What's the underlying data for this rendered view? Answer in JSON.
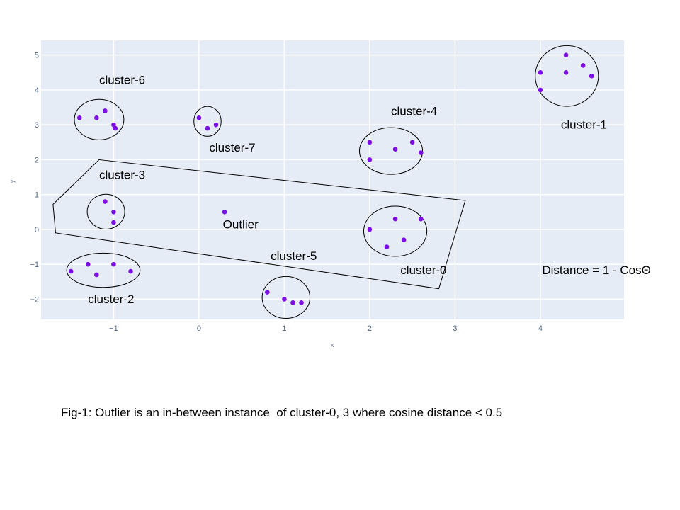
{
  "chart_data": {
    "type": "scatter",
    "title": "",
    "xlabel": "x",
    "ylabel": "y",
    "xlim": [
      -1.85,
      4.98
    ],
    "ylim": [
      -2.58,
      5.42
    ],
    "xticks": [
      -1,
      0,
      1,
      2,
      3,
      4
    ],
    "yticks": [
      -2,
      -1,
      0,
      1,
      2,
      3,
      4,
      5
    ],
    "xtick_labels": [
      "−1",
      "0",
      "1",
      "2",
      "3",
      "4"
    ],
    "ytick_labels": [
      "−2",
      "−1",
      "0",
      "1",
      "2",
      "3",
      "4",
      "5"
    ],
    "grid": true,
    "colors": {
      "plot_bg": "#E5ECF6",
      "grid": "#FFFFFF",
      "marker": "#7B0EE6",
      "outline": "#000000"
    },
    "points": [
      {
        "x": -1.4,
        "y": 3.2
      },
      {
        "x": -1.2,
        "y": 3.2
      },
      {
        "x": -1.1,
        "y": 3.4
      },
      {
        "x": -1.0,
        "y": 3.0
      },
      {
        "x": -0.98,
        "y": 2.9
      },
      {
        "x": 0.0,
        "y": 3.2
      },
      {
        "x": 0.1,
        "y": 2.9
      },
      {
        "x": 0.2,
        "y": 3.0
      },
      {
        "x": 2.0,
        "y": 2.5
      },
      {
        "x": 2.3,
        "y": 2.3
      },
      {
        "x": 2.5,
        "y": 2.5
      },
      {
        "x": 2.6,
        "y": 2.2
      },
      {
        "x": 2.0,
        "y": 2.0
      },
      {
        "x": 4.0,
        "y": 4.5
      },
      {
        "x": 4.0,
        "y": 4.0
      },
      {
        "x": 4.3,
        "y": 5.0
      },
      {
        "x": 4.3,
        "y": 4.5
      },
      {
        "x": 4.5,
        "y": 4.7
      },
      {
        "x": 4.6,
        "y": 4.4
      },
      {
        "x": -1.1,
        "y": 0.8
      },
      {
        "x": -1.0,
        "y": 0.5
      },
      {
        "x": -1.0,
        "y": 0.2
      },
      {
        "x": 0.3,
        "y": 0.5
      },
      {
        "x": 2.0,
        "y": 0.0
      },
      {
        "x": 2.3,
        "y": 0.3
      },
      {
        "x": 2.6,
        "y": 0.3
      },
      {
        "x": 2.2,
        "y": -0.5
      },
      {
        "x": 2.4,
        "y": -0.3
      },
      {
        "x": -1.5,
        "y": -1.2
      },
      {
        "x": -1.3,
        "y": -1.0
      },
      {
        "x": -1.2,
        "y": -1.3
      },
      {
        "x": -1.0,
        "y": -1.0
      },
      {
        "x": -0.8,
        "y": -1.2
      },
      {
        "x": 0.8,
        "y": -1.8
      },
      {
        "x": 1.0,
        "y": -2.0
      },
      {
        "x": 1.1,
        "y": -2.1
      },
      {
        "x": 1.2,
        "y": -2.1
      }
    ],
    "cluster_outlines": [
      {
        "name": "cluster-6",
        "cx": -1.17,
        "cy": 3.15,
        "rx": 0.29,
        "ry": 0.58
      },
      {
        "name": "cluster-7",
        "cx": 0.1,
        "cy": 3.1,
        "rx": 0.16,
        "ry": 0.43
      },
      {
        "name": "cluster-4",
        "cx": 2.25,
        "cy": 2.25,
        "rx": 0.37,
        "ry": 0.67
      },
      {
        "name": "cluster-1",
        "cx": 4.31,
        "cy": 4.4,
        "rx": 0.37,
        "ry": 0.87
      },
      {
        "name": "cluster-3",
        "cx": -1.09,
        "cy": 0.51,
        "rx": 0.22,
        "ry": 0.5
      },
      {
        "name": "cluster-0",
        "cx": 2.3,
        "cy": -0.05,
        "rx": 0.37,
        "ry": 0.72
      },
      {
        "name": "cluster-2",
        "cx": -1.12,
        "cy": -1.17,
        "rx": 0.43,
        "ry": 0.49
      },
      {
        "name": "cluster-5",
        "cx": 1.02,
        "cy": -1.95,
        "rx": 0.28,
        "ry": 0.6
      }
    ],
    "polygon": [
      [
        -1.17,
        2.0
      ],
      [
        3.12,
        0.83
      ],
      [
        2.81,
        -1.7
      ],
      [
        -1.68,
        -0.1
      ],
      [
        -1.71,
        0.72
      ]
    ],
    "annotations": [
      {
        "text": "cluster-6",
        "x": -1.17,
        "y": 4.17
      },
      {
        "text": "cluster-7",
        "x": 0.12,
        "y": 2.23
      },
      {
        "text": "cluster-4",
        "x": 2.25,
        "y": 3.28
      },
      {
        "text": "cluster-1",
        "x": 4.24,
        "y": 2.89
      },
      {
        "text": "cluster-3",
        "x": -1.17,
        "y": 1.45
      },
      {
        "text": "Outlier",
        "x": 0.28,
        "y": 0.03
      },
      {
        "text": "cluster-0",
        "x": 2.36,
        "y": -1.28
      },
      {
        "text": "cluster-5",
        "x": 0.84,
        "y": -0.87
      },
      {
        "text": "cluster-2",
        "x": -1.3,
        "y": -2.11
      },
      {
        "text": "Distance = 1 - CosΘ",
        "x": 4.02,
        "y": -1.28
      }
    ]
  },
  "caption": "Fig-1: Outlier is an in-between instance  of cluster-0, 3 where cosine distance < 0.5"
}
